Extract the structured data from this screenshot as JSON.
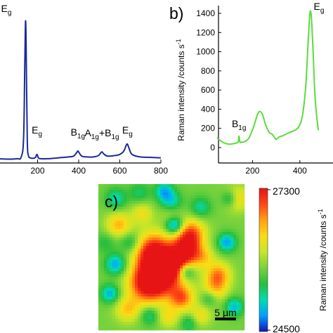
{
  "chart_data": [
    {
      "id": "a",
      "type": "line",
      "panel_label": "",
      "xlabel": "",
      "ylabel": "",
      "xlim": [
        0,
        800
      ],
      "x_ticks": [
        200,
        400,
        600,
        800
      ],
      "series": [
        {
          "color": "#1a2a9a",
          "x": [
            0,
            60,
            100,
            120,
            132,
            138,
            142,
            146,
            150,
            155,
            165,
            180,
            190,
            197,
            204,
            215,
            250,
            300,
            350,
            375,
            390,
            396,
            402,
            415,
            440,
            470,
            495,
            505,
            513,
            522,
            540,
            570,
            600,
            620,
            630,
            637,
            645,
            660,
            700,
            750,
            800
          ],
          "y": [
            10,
            9,
            10,
            14,
            60,
            240,
            330,
            200,
            50,
            18,
            12,
            11,
            13,
            20,
            12,
            10,
            10,
            12,
            14,
            16,
            24,
            28,
            24,
            16,
            14,
            14,
            17,
            22,
            26,
            21,
            16,
            17,
            20,
            28,
            40,
            44,
            34,
            20,
            14,
            13,
            12
          ]
        }
      ],
      "peak_labels": [
        {
          "base": "E",
          "sub": "g",
          "x": 140
        },
        {
          "base": "E",
          "sub": "g",
          "x": 197
        },
        {
          "base": "B",
          "sub": "1g",
          "x": 396
        },
        {
          "base": "A",
          "sub": "1g",
          "mid": "+B",
          "sub2": "1g",
          "x": 513
        },
        {
          "base": "E",
          "sub": "g",
          "x": 637
        }
      ]
    },
    {
      "id": "b",
      "type": "line",
      "panel_label": "b)",
      "ylabel": "Raman intensity /counts s",
      "ylabel_sup": "-1",
      "xlim": [
        0,
        520
      ],
      "ylim": [
        -100,
        1500
      ],
      "x_ticks": [
        200,
        400
      ],
      "y_ticks": [
        0,
        200,
        400,
        600,
        800,
        1000,
        1200,
        1400
      ],
      "series": [
        {
          "color": "#5adc3c",
          "x": [
            50,
            65,
            80,
            100,
            120,
            135,
            140,
            143,
            147,
            152,
            165,
            185,
            205,
            222,
            232,
            242,
            255,
            270,
            282,
            292,
            300,
            312,
            330,
            350,
            370,
            390,
            405,
            415,
            425,
            435,
            442,
            448,
            455,
            465,
            478
          ],
          "y": [
            100,
            72,
            48,
            35,
            40,
            50,
            60,
            120,
            58,
            55,
            60,
            100,
            220,
            350,
            375,
            345,
            240,
            160,
            140,
            110,
            85,
            110,
            125,
            150,
            170,
            200,
            270,
            400,
            650,
            1100,
            1390,
            1380,
            1050,
            500,
            180
          ]
        }
      ],
      "peak_labels": [
        {
          "base": "B",
          "sub": "1g",
          "x": 143
        },
        {
          "base": "E",
          "sub": "g",
          "x": 445
        }
      ]
    },
    {
      "id": "c",
      "type": "heatmap",
      "panel_label": "c)",
      "colorbar_label": "Raman intensity /counts s",
      "colorbar_label_sup": "-1",
      "colorbar_max": "27300",
      "colorbar_min": "24500",
      "scale_bar": "5 μm",
      "colormap": [
        "#1414b4",
        "#00a0ff",
        "#00dcb4",
        "#28be3c",
        "#78d23c",
        "#c8e628",
        "#fadc14",
        "#ffa014",
        "#ff4614",
        "#e61414"
      ],
      "base_level": 0.44,
      "blobs": [
        {
          "x": 0.38,
          "y": 0.46,
          "amp": 0.55,
          "r": 0.09
        },
        {
          "x": 0.42,
          "y": 0.62,
          "amp": 0.6,
          "r": 0.1
        },
        {
          "x": 0.33,
          "y": 0.69,
          "amp": 0.45,
          "r": 0.09
        },
        {
          "x": 0.52,
          "y": 0.56,
          "amp": 0.3,
          "r": 0.07
        },
        {
          "x": 0.63,
          "y": 0.34,
          "amp": 0.45,
          "r": 0.07
        },
        {
          "x": 0.6,
          "y": 0.46,
          "amp": 0.5,
          "r": 0.07
        },
        {
          "x": 0.57,
          "y": 0.78,
          "amp": 0.4,
          "r": 0.06
        },
        {
          "x": 0.82,
          "y": 0.62,
          "amp": 0.35,
          "r": 0.06
        },
        {
          "x": 0.8,
          "y": 0.72,
          "amp": 0.25,
          "r": 0.06
        },
        {
          "x": 0.72,
          "y": 0.5,
          "amp": 0.2,
          "r": 0.05
        },
        {
          "x": 0.14,
          "y": 0.28,
          "amp": 0.3,
          "r": 0.06
        },
        {
          "x": 0.3,
          "y": 0.2,
          "amp": 0.2,
          "r": 0.05
        },
        {
          "x": 0.2,
          "y": 0.86,
          "amp": 0.25,
          "r": 0.06
        },
        {
          "x": 0.7,
          "y": 0.9,
          "amp": 0.2,
          "r": 0.05
        },
        {
          "x": 0.95,
          "y": 0.1,
          "amp": 0.25,
          "r": 0.06
        },
        {
          "x": 0.48,
          "y": 0.91,
          "amp": 0.2,
          "r": 0.05
        },
        {
          "x": 0.5,
          "y": 0.23,
          "amp": 0.15,
          "r": 0.05
        },
        {
          "x": 0.5,
          "y": 0.12,
          "amp": -0.22,
          "r": 0.05
        },
        {
          "x": 0.52,
          "y": 0.28,
          "amp": -0.45,
          "r": 0.045
        },
        {
          "x": 0.12,
          "y": 0.55,
          "amp": -0.32,
          "r": 0.05
        },
        {
          "x": 0.08,
          "y": 0.75,
          "amp": -0.3,
          "r": 0.045
        },
        {
          "x": 0.88,
          "y": 0.4,
          "amp": -0.32,
          "r": 0.045
        },
        {
          "x": 0.9,
          "y": 0.1,
          "amp": -0.25,
          "r": 0.04
        },
        {
          "x": 0.6,
          "y": 0.6,
          "amp": -0.3,
          "r": 0.04
        },
        {
          "x": 0.45,
          "y": 0.05,
          "amp": -0.28,
          "r": 0.045
        },
        {
          "x": 0.22,
          "y": 0.4,
          "amp": -0.2,
          "r": 0.05
        },
        {
          "x": 0.35,
          "y": 0.9,
          "amp": -0.2,
          "r": 0.045
        },
        {
          "x": 0.12,
          "y": 0.1,
          "amp": -0.22,
          "r": 0.05
        },
        {
          "x": 0.7,
          "y": 0.16,
          "amp": -0.2,
          "r": 0.05
        },
        {
          "x": 0.93,
          "y": 0.84,
          "amp": -0.28,
          "r": 0.045
        },
        {
          "x": 0.28,
          "y": 0.06,
          "amp": -0.15,
          "r": 0.05
        },
        {
          "x": 0.76,
          "y": 0.78,
          "amp": -0.18,
          "r": 0.04
        },
        {
          "x": 0.62,
          "y": 0.95,
          "amp": -0.18,
          "r": 0.04
        },
        {
          "x": 0.05,
          "y": 0.4,
          "amp": -0.12,
          "r": 0.05
        }
      ]
    }
  ]
}
